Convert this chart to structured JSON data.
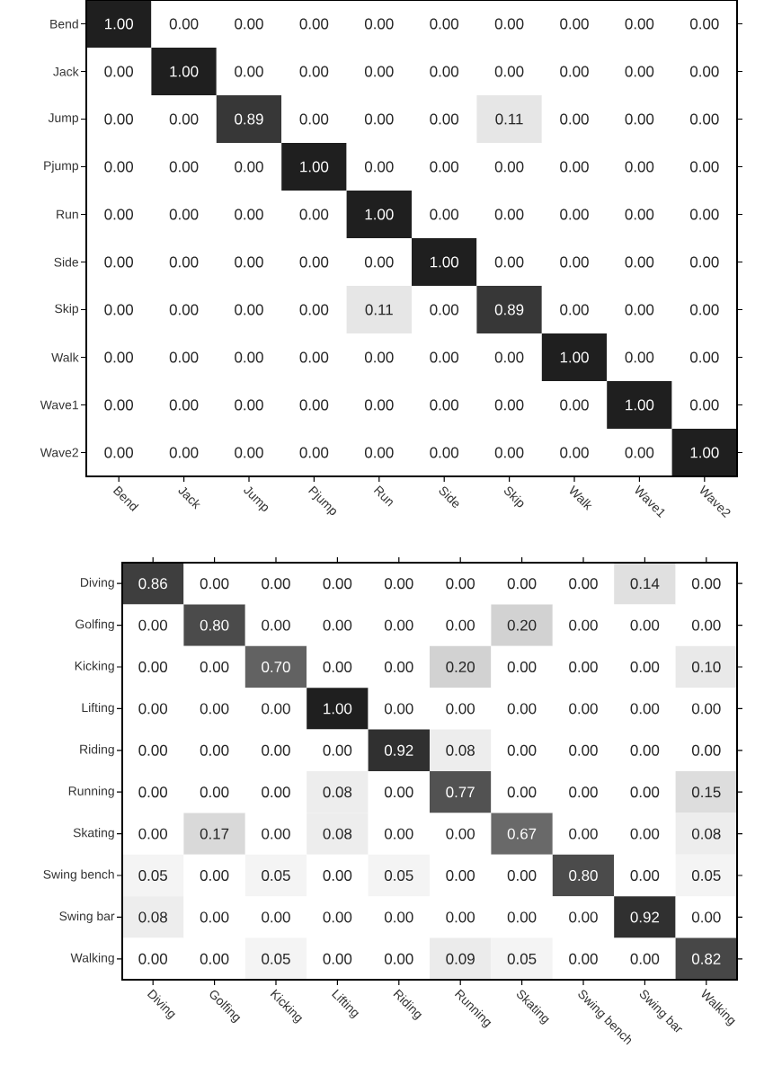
{
  "chart_data": [
    {
      "type": "heatmap",
      "categories": [
        "Bend",
        "Jack",
        "Jump",
        "Pjump",
        "Run",
        "Side",
        "Skip",
        "Walk",
        "Wave1",
        "Wave2"
      ],
      "y_categories": [
        "Bend",
        "Jack",
        "Jump",
        "Pjump",
        "Run",
        "Side",
        "Skip",
        "Walk",
        "Wave1",
        "Wave2"
      ],
      "cells": [
        [
          1.0,
          0,
          0,
          0,
          0,
          0,
          0,
          0,
          0,
          0
        ],
        [
          0,
          1.0,
          0,
          0,
          0,
          0,
          0,
          0,
          0,
          0
        ],
        [
          0,
          0,
          0.89,
          0,
          0,
          0,
          0.11,
          0,
          0,
          0
        ],
        [
          0,
          0,
          0,
          1.0,
          0,
          0,
          0,
          0,
          0,
          0
        ],
        [
          0,
          0,
          0,
          0,
          1.0,
          0,
          0,
          0,
          0,
          0
        ],
        [
          0,
          0,
          0,
          0,
          0,
          1.0,
          0,
          0,
          0,
          0
        ],
        [
          0,
          0,
          0,
          0,
          0.11,
          0,
          0.89,
          0,
          0,
          0
        ],
        [
          0,
          0,
          0,
          0,
          0,
          0,
          0,
          1.0,
          0,
          0
        ],
        [
          0,
          0,
          0,
          0,
          0,
          0,
          0,
          0,
          1.0,
          0
        ],
        [
          0,
          0,
          0,
          0,
          0,
          0,
          0,
          0,
          0,
          1.0
        ]
      ],
      "cell_labels": [
        [
          "1.00",
          "0.00",
          "0.00",
          "0.00",
          "0.00",
          "0.00",
          "0.00",
          "0.00",
          "0.00",
          "0.00"
        ],
        [
          "0.00",
          "1.00",
          "0.00",
          "0.00",
          "0.00",
          "0.00",
          "0.00",
          "0.00",
          "0.00",
          "0.00"
        ],
        [
          "0.00",
          "0.00",
          "0.89",
          "0.00",
          "0.00",
          "0.00",
          "0.11",
          "0.00",
          "0.00",
          "0.00"
        ],
        [
          "0.00",
          "0.00",
          "0.00",
          "1.00",
          "0.00",
          "0.00",
          "0.00",
          "0.00",
          "0.00",
          "0.00"
        ],
        [
          "0.00",
          "0.00",
          "0.00",
          "0.00",
          "1.00",
          "0.00",
          "0.00",
          "0.00",
          "0.00",
          "0.00"
        ],
        [
          "0.00",
          "0.00",
          "0.00",
          "0.00",
          "0.00",
          "1.00",
          "0.00",
          "0.00",
          "0.00",
          "0.00"
        ],
        [
          "0.00",
          "0.00",
          "0.00",
          "0.00",
          "0.11",
          "0.00",
          "0.89",
          "0.00",
          "0.00",
          "0.00"
        ],
        [
          "0.00",
          "0.00",
          "0.00",
          "0.00",
          "0.00",
          "0.00",
          "0.00",
          "1.00",
          "0.00",
          "0.00"
        ],
        [
          "0.00",
          "0.00",
          "0.00",
          "0.00",
          "0.00",
          "0.00",
          "0.00",
          "0.00",
          "1.00",
          "0.00"
        ],
        [
          "0.00",
          "0.00",
          "0.00",
          "0.00",
          "0.00",
          "0.00",
          "0.00",
          "0.00",
          "0.00",
          "1.00"
        ]
      ]
    },
    {
      "type": "heatmap",
      "categories": [
        "Diving",
        "Golfing",
        "Kicking",
        "Lifting",
        "Riding",
        "Running",
        "Skating",
        "Swing bench",
        "Swing bar",
        "Walking"
      ],
      "y_categories": [
        "Diving",
        "Golfing",
        "Kicking",
        "Lifting",
        "Riding",
        "Running",
        "Skating",
        "Swing bench",
        "Swing bar",
        "Walking"
      ],
      "cells": [
        [
          0.86,
          0,
          0,
          0,
          0,
          0,
          0,
          0,
          0.14,
          0
        ],
        [
          0,
          0.8,
          0,
          0,
          0,
          0,
          0.2,
          0,
          0,
          0
        ],
        [
          0,
          0,
          0.7,
          0,
          0,
          0.2,
          0,
          0,
          0,
          0.1
        ],
        [
          0,
          0,
          0,
          1.0,
          0,
          0,
          0,
          0,
          0,
          0
        ],
        [
          0,
          0,
          0,
          0,
          0.92,
          0.08,
          0,
          0,
          0,
          0
        ],
        [
          0,
          0,
          0,
          0.08,
          0,
          0.77,
          0,
          0,
          0,
          0.15
        ],
        [
          0,
          0.17,
          0,
          0.08,
          0,
          0,
          0.67,
          0,
          0,
          0.08
        ],
        [
          0.05,
          0,
          0.05,
          0,
          0.05,
          0,
          0,
          0.8,
          0,
          0.05
        ],
        [
          0.08,
          0,
          0,
          0,
          0,
          0,
          0,
          0,
          0.92,
          0
        ],
        [
          0,
          0,
          0.05,
          0,
          0,
          0.09,
          0.05,
          0,
          0,
          0.82
        ]
      ],
      "cell_labels": [
        [
          "0.86",
          "0.00",
          "0.00",
          "0.00",
          "0.00",
          "0.00",
          "0.00",
          "0.00",
          "0.14",
          "0.00"
        ],
        [
          "0.00",
          "0.80",
          "0.00",
          "0.00",
          "0.00",
          "0.00",
          "0.20",
          "0.00",
          "0.00",
          "0.00"
        ],
        [
          "0.00",
          "0.00",
          "0.70",
          "0.00",
          "0.00",
          "0.20",
          "0.00",
          "0.00",
          "0.00",
          "0.10"
        ],
        [
          "0.00",
          "0.00",
          "0.00",
          "1.00",
          "0.00",
          "0.00",
          "0.00",
          "0.00",
          "0.00",
          "0.00"
        ],
        [
          "0.00",
          "0.00",
          "0.00",
          "0.00",
          "0.92",
          "0.08",
          "0.00",
          "0.00",
          "0.00",
          "0.00"
        ],
        [
          "0.00",
          "0.00",
          "0.00",
          "0.08",
          "0.00",
          "0.77",
          "0.00",
          "0.00",
          "0.00",
          "0.15"
        ],
        [
          "0.00",
          "0.17",
          "0.00",
          "0.08",
          "0.00",
          "0.00",
          "0.67",
          "0.00",
          "0.00",
          "0.08"
        ],
        [
          "0.05",
          "0.00",
          "0.05",
          "0.00",
          "0.05",
          "0.00",
          "0.00",
          "0.80",
          "0.00",
          "0.05"
        ],
        [
          "0.08",
          "0.00",
          "0.00",
          "0.00",
          "0.00",
          "0.00",
          "0.00",
          "0.00",
          "0.92",
          "0.00"
        ],
        [
          "0.00",
          "0.00",
          "0.05",
          "0.00",
          "0.00",
          "0.09",
          "0.05",
          "0.00",
          "0.00",
          "0.82"
        ]
      ]
    }
  ]
}
